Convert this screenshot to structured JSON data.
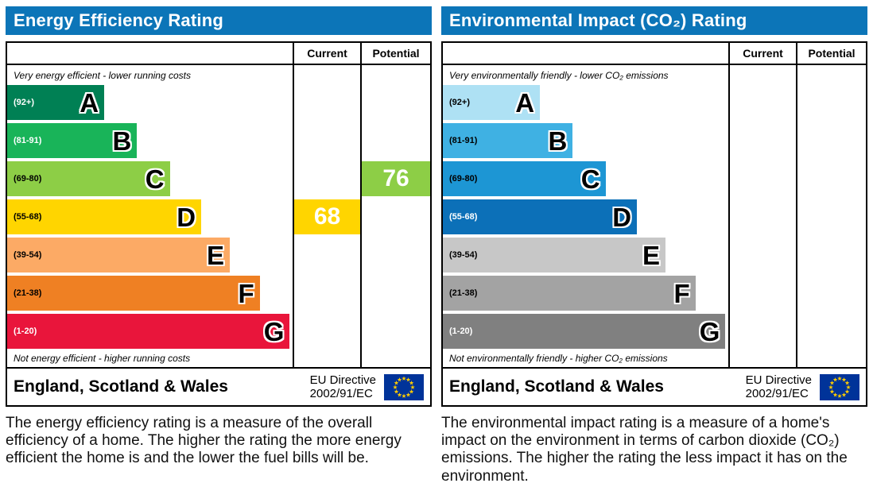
{
  "colors": {
    "header_bg": "#0c75b8",
    "header_text": "#ffffff",
    "border": "#000000",
    "eu_flag_bg": "#003399",
    "eu_flag_star": "#ffcc00"
  },
  "panels": [
    {
      "title": "Energy Efficiency Rating",
      "columns": {
        "current": "Current",
        "potential": "Potential"
      },
      "top_note": "Very energy efficient - lower running costs",
      "bottom_note": "Not energy efficient - higher running costs",
      "bands": [
        {
          "letter": "A",
          "range": "(92+)",
          "color": "#008054",
          "range_text_color": "#ffffff",
          "width_pct": 34
        },
        {
          "letter": "B",
          "range": "(81-91)",
          "color": "#19b459",
          "range_text_color": "#ffffff",
          "width_pct": 45.5
        },
        {
          "letter": "C",
          "range": "(69-80)",
          "color": "#8dce46",
          "range_text_color": "#000000",
          "width_pct": 57
        },
        {
          "letter": "D",
          "range": "(55-68)",
          "color": "#ffd500",
          "range_text_color": "#000000",
          "width_pct": 68
        },
        {
          "letter": "E",
          "range": "(39-54)",
          "color": "#fcaa65",
          "range_text_color": "#000000",
          "width_pct": 78
        },
        {
          "letter": "F",
          "range": "(21-38)",
          "color": "#ef8023",
          "range_text_color": "#000000",
          "width_pct": 88.5
        },
        {
          "letter": "G",
          "range": "(1-20)",
          "color": "#e9153b",
          "range_text_color": "#ffffff",
          "width_pct": 99
        }
      ],
      "current": {
        "value": "68",
        "band_index": 3,
        "color": "#ffd500",
        "text_color": "#ffffff"
      },
      "potential": {
        "value": "76",
        "band_index": 2,
        "color": "#8dce46",
        "text_color": "#ffffff"
      },
      "footer": {
        "region": "England, Scotland & Wales",
        "directive_line1": "EU Directive",
        "directive_line2": "2002/91/EC"
      },
      "description": "The energy efficiency rating is a measure of the overall efficiency of a home. The higher the rating the more energy efficient the home is and the lower the fuel bills will be."
    },
    {
      "title": "Environmental Impact (CO₂) Rating",
      "columns": {
        "current": "Current",
        "potential": "Potential"
      },
      "top_note": "Very environmentally friendly - lower CO₂ emissions",
      "bottom_note": "Not environmentally friendly - higher CO₂ emissions",
      "bands": [
        {
          "letter": "A",
          "range": "(92+)",
          "color": "#aee1f4",
          "range_text_color": "#000000",
          "width_pct": 34
        },
        {
          "letter": "B",
          "range": "(81-91)",
          "color": "#3fb1e3",
          "range_text_color": "#000000",
          "width_pct": 45.5
        },
        {
          "letter": "C",
          "range": "(69-80)",
          "color": "#1d96d4",
          "range_text_color": "#000000",
          "width_pct": 57
        },
        {
          "letter": "D",
          "range": "(55-68)",
          "color": "#0c70b8",
          "range_text_color": "#ffffff",
          "width_pct": 68
        },
        {
          "letter": "E",
          "range": "(39-54)",
          "color": "#c7c7c7",
          "range_text_color": "#000000",
          "width_pct": 78
        },
        {
          "letter": "F",
          "range": "(21-38)",
          "color": "#a3a3a3",
          "range_text_color": "#000000",
          "width_pct": 88.5
        },
        {
          "letter": "G",
          "range": "(1-20)",
          "color": "#808080",
          "range_text_color": "#ffffff",
          "width_pct": 99
        }
      ],
      "current": null,
      "potential": null,
      "footer": {
        "region": "England, Scotland & Wales",
        "directive_line1": "EU Directive",
        "directive_line2": "2002/91/EC"
      },
      "description": "The environmental impact rating is a measure of a home's impact on the environment in terms of carbon dioxide (CO₂) emissions. The higher the rating the less impact it has on the environment."
    }
  ],
  "chart_data": [
    {
      "type": "bar",
      "title": "Energy Efficiency Rating",
      "categories": [
        "A (92+)",
        "B (81-91)",
        "C (69-80)",
        "D (55-68)",
        "E (39-54)",
        "F (21-38)",
        "G (1-20)"
      ],
      "bar_width_pct": [
        34,
        45.5,
        57,
        68,
        78,
        88.5,
        99
      ],
      "current": 68,
      "current_band": "D",
      "potential": 76,
      "potential_band": "C",
      "legend_position": "none",
      "grid": false
    },
    {
      "type": "bar",
      "title": "Environmental Impact (CO₂) Rating",
      "categories": [
        "A (92+)",
        "B (81-91)",
        "C (69-80)",
        "D (55-68)",
        "E (39-54)",
        "F (21-38)",
        "G (1-20)"
      ],
      "bar_width_pct": [
        34,
        45.5,
        57,
        68,
        78,
        88.5,
        99
      ],
      "current": null,
      "current_band": null,
      "potential": null,
      "potential_band": null,
      "legend_position": "none",
      "grid": false
    }
  ]
}
